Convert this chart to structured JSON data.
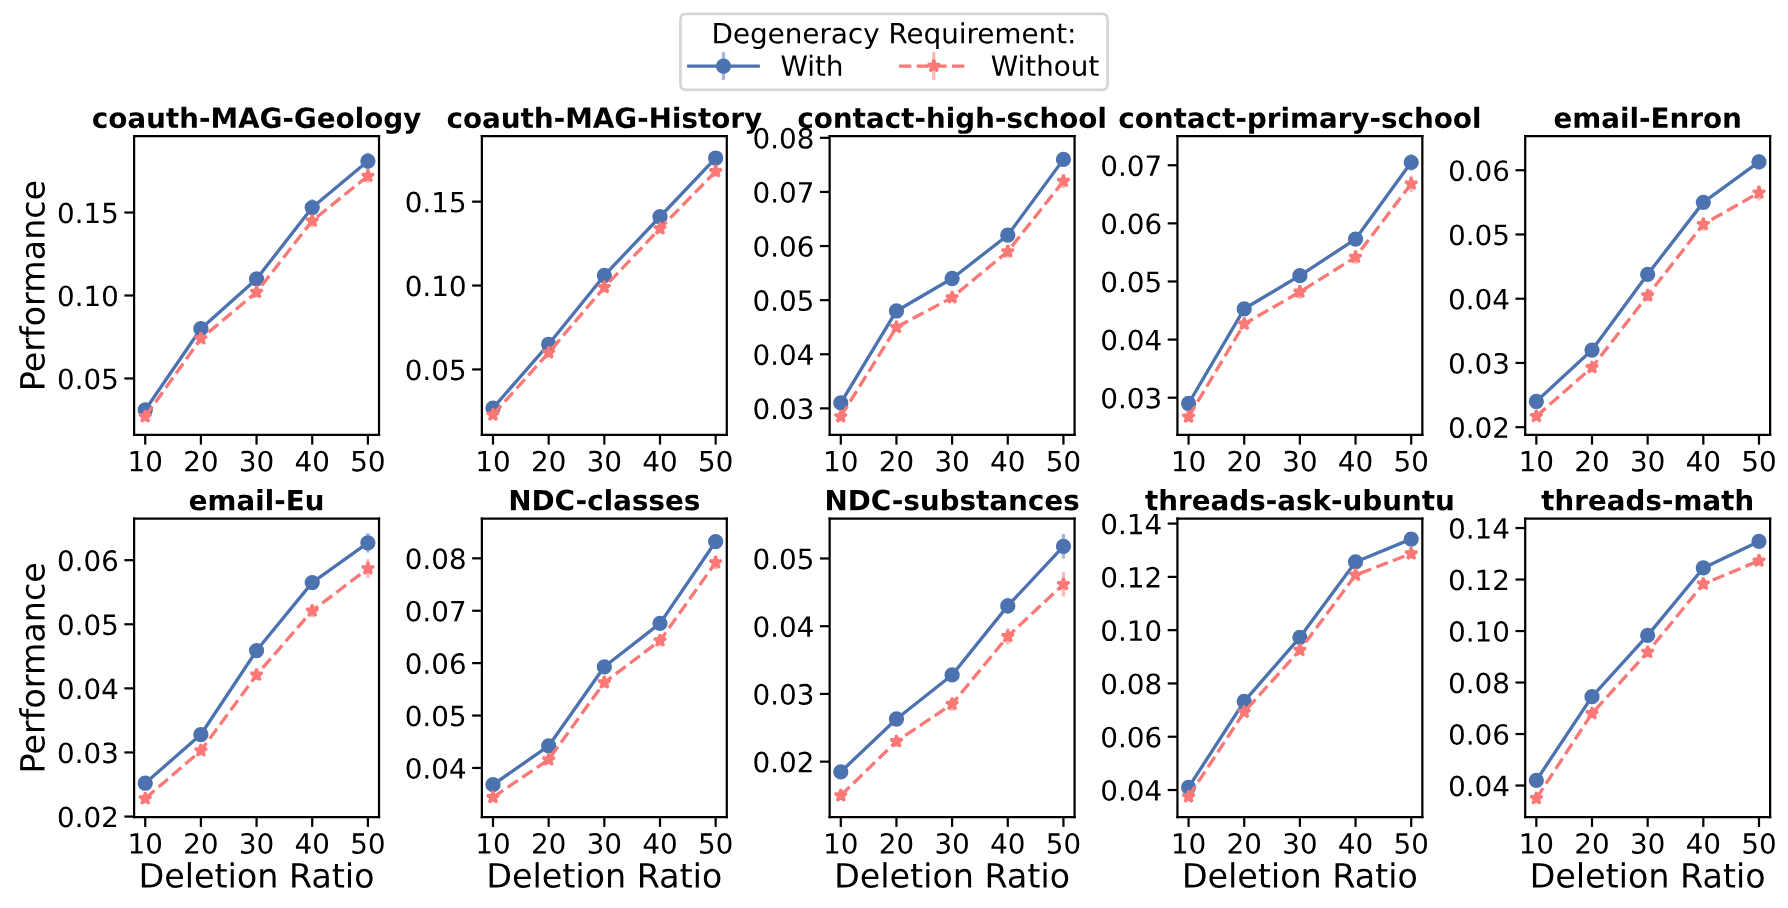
{
  "chart_data": [
    {
      "type": "line",
      "title": "coauth-MAG-Geology",
      "ylabel": "Performance",
      "legend_title": "Degeneracy Requirement:",
      "legend": "top",
      "x": [
        10,
        20,
        30,
        40,
        50
      ],
      "xlim": [
        8,
        52
      ],
      "xticks": [
        10,
        20,
        30,
        40,
        50
      ],
      "ylim": [
        0.016,
        0.196
      ],
      "yticks": [
        {
          "value": 0.05,
          "label": "0.05"
        },
        {
          "value": 0.1,
          "label": "0.10"
        },
        {
          "value": 0.15,
          "label": "0.15"
        }
      ],
      "series": [
        {
          "name": "With",
          "color": "#4c72b0",
          "marker": "circle",
          "line_style": "solid",
          "values": [
            0.031,
            0.08,
            0.11,
            0.153,
            0.181
          ],
          "errors": [
            0.002,
            0.002,
            0.003,
            0.005,
            0.005
          ]
        },
        {
          "name": "Without",
          "color": "#fa7876",
          "marker": "star",
          "line_style": "dashed",
          "values": [
            0.027,
            0.074,
            0.102,
            0.145,
            0.172
          ],
          "errors": [
            0.002,
            0.002,
            0.003,
            0.004,
            0.004
          ]
        }
      ]
    },
    {
      "type": "line",
      "title": "coauth-MAG-History",
      "x": [
        10,
        20,
        30,
        40,
        50
      ],
      "xlim": [
        8,
        52
      ],
      "xticks": [
        10,
        20,
        30,
        40,
        50
      ],
      "ylim": [
        0.011,
        0.189
      ],
      "yticks": [
        {
          "value": 0.05,
          "label": "0.05"
        },
        {
          "value": 0.1,
          "label": "0.10"
        },
        {
          "value": 0.15,
          "label": "0.15"
        }
      ],
      "series": [
        {
          "color": "#4c72b0",
          "marker": "circle",
          "line_style": "solid",
          "values": [
            0.027,
            0.065,
            0.106,
            0.141,
            0.176
          ],
          "errors": [
            0.002,
            0.002,
            0.003,
            0.003,
            0.004
          ]
        },
        {
          "color": "#fa7876",
          "marker": "star",
          "line_style": "dashed",
          "values": [
            0.023,
            0.06,
            0.099,
            0.134,
            0.168
          ],
          "errors": [
            0.002,
            0.002,
            0.003,
            0.003,
            0.003
          ]
        }
      ]
    },
    {
      "type": "line",
      "title": "contact-high-school",
      "x": [
        10,
        20,
        30,
        40,
        50
      ],
      "xlim": [
        8,
        52
      ],
      "xticks": [
        10,
        20,
        30,
        40,
        50
      ],
      "ylim": [
        0.0251,
        0.0803
      ],
      "yticks": [
        {
          "value": 0.03,
          "label": "0.03"
        },
        {
          "value": 0.04,
          "label": "0.04"
        },
        {
          "value": 0.05,
          "label": "0.05"
        },
        {
          "value": 0.06,
          "label": "0.06"
        },
        {
          "value": 0.07,
          "label": "0.07"
        },
        {
          "value": 0.08,
          "label": "0.08"
        }
      ],
      "series": [
        {
          "color": "#4c72b0",
          "marker": "circle",
          "line_style": "solid",
          "values": [
            0.031,
            0.048,
            0.054,
            0.062,
            0.076
          ],
          "errors": [
            0.0005,
            0.0006,
            0.0008,
            0.0012,
            0.0013
          ]
        },
        {
          "color": "#fa7876",
          "marker": "star",
          "line_style": "dashed",
          "values": [
            0.0285,
            0.045,
            0.0505,
            0.059,
            0.072
          ],
          "errors": [
            0.0005,
            0.0006,
            0.0008,
            0.0012,
            0.0013
          ]
        }
      ]
    },
    {
      "type": "line",
      "title": "contact-primary-school",
      "x": [
        10,
        20,
        30,
        40,
        50
      ],
      "xlim": [
        8,
        52
      ],
      "xticks": [
        10,
        20,
        30,
        40,
        50
      ],
      "ylim": [
        0.0236,
        0.075
      ],
      "yticks": [
        {
          "value": 0.03,
          "label": "0.03"
        },
        {
          "value": 0.04,
          "label": "0.04"
        },
        {
          "value": 0.05,
          "label": "0.05"
        },
        {
          "value": 0.06,
          "label": "0.06"
        },
        {
          "value": 0.07,
          "label": "0.07"
        }
      ],
      "series": [
        {
          "color": "#4c72b0",
          "marker": "circle",
          "line_style": "solid",
          "values": [
            0.029,
            0.0453,
            0.051,
            0.0573,
            0.0705
          ],
          "errors": [
            0.0005,
            0.0008,
            0.0012,
            0.0012,
            0.0014
          ]
        },
        {
          "color": "#fa7876",
          "marker": "star",
          "line_style": "dashed",
          "values": [
            0.0267,
            0.0427,
            0.0482,
            0.0542,
            0.0668
          ],
          "errors": [
            0.0005,
            0.0008,
            0.0012,
            0.0012,
            0.0014
          ]
        }
      ]
    },
    {
      "type": "line",
      "title": "email-Enron",
      "x": [
        10,
        20,
        30,
        40,
        50
      ],
      "xlim": [
        8,
        52
      ],
      "xticks": [
        10,
        20,
        30,
        40,
        50
      ],
      "ylim": [
        0.0188,
        0.0653
      ],
      "yticks": [
        {
          "value": 0.02,
          "label": "0.02"
        },
        {
          "value": 0.03,
          "label": "0.03"
        },
        {
          "value": 0.04,
          "label": "0.04"
        },
        {
          "value": 0.05,
          "label": "0.05"
        },
        {
          "value": 0.06,
          "label": "0.06"
        }
      ],
      "series": [
        {
          "color": "#4c72b0",
          "marker": "circle",
          "line_style": "solid",
          "values": [
            0.024,
            0.032,
            0.0438,
            0.055,
            0.0613
          ],
          "errors": [
            0.0005,
            0.0007,
            0.0009,
            0.001,
            0.0012
          ]
        },
        {
          "color": "#fa7876",
          "marker": "star",
          "line_style": "dashed",
          "values": [
            0.0217,
            0.0293,
            0.0405,
            0.0516,
            0.0565
          ],
          "errors": [
            0.0005,
            0.0007,
            0.0009,
            0.001,
            0.0012
          ]
        }
      ]
    },
    {
      "type": "line",
      "title": "email-Eu",
      "xlabel": "Deletion Ratio",
      "ylabel": "Performance",
      "x": [
        10,
        20,
        30,
        40,
        50
      ],
      "xlim": [
        8,
        52
      ],
      "xticks": [
        10,
        20,
        30,
        40,
        50
      ],
      "ylim": [
        0.0199,
        0.0665
      ],
      "yticks": [
        {
          "value": 0.02,
          "label": "0.02"
        },
        {
          "value": 0.03,
          "label": "0.03"
        },
        {
          "value": 0.04,
          "label": "0.04"
        },
        {
          "value": 0.05,
          "label": "0.05"
        },
        {
          "value": 0.06,
          "label": "0.06"
        }
      ],
      "series": [
        {
          "color": "#4c72b0",
          "marker": "circle",
          "line_style": "solid",
          "values": [
            0.0252,
            0.0328,
            0.0459,
            0.0565,
            0.0627
          ],
          "errors": [
            0.0004,
            0.0006,
            0.0008,
            0.001,
            0.0015
          ]
        },
        {
          "color": "#fa7876",
          "marker": "star",
          "line_style": "dashed",
          "values": [
            0.0228,
            0.0303,
            0.0421,
            0.0521,
            0.0587
          ],
          "errors": [
            0.0004,
            0.0006,
            0.0008,
            0.001,
            0.0015
          ]
        }
      ]
    },
    {
      "type": "line",
      "title": "NDC-classes",
      "xlabel": "Deletion Ratio",
      "x": [
        10,
        20,
        30,
        40,
        50
      ],
      "xlim": [
        8,
        52
      ],
      "xticks": [
        10,
        20,
        30,
        40,
        50
      ],
      "ylim": [
        0.0306,
        0.0876
      ],
      "yticks": [
        {
          "value": 0.04,
          "label": "0.04"
        },
        {
          "value": 0.05,
          "label": "0.05"
        },
        {
          "value": 0.06,
          "label": "0.06"
        },
        {
          "value": 0.07,
          "label": "0.07"
        },
        {
          "value": 0.08,
          "label": "0.08"
        }
      ],
      "series": [
        {
          "color": "#4c72b0",
          "marker": "circle",
          "line_style": "solid",
          "values": [
            0.0368,
            0.0442,
            0.0593,
            0.0676,
            0.0832
          ],
          "errors": [
            0.0004,
            0.0005,
            0.001,
            0.001,
            0.0013
          ]
        },
        {
          "color": "#fa7876",
          "marker": "star",
          "line_style": "dashed",
          "values": [
            0.0344,
            0.0416,
            0.0563,
            0.0643,
            0.0792
          ],
          "errors": [
            0.0004,
            0.0005,
            0.001,
            0.001,
            0.0013
          ]
        }
      ]
    },
    {
      "type": "line",
      "title": "NDC-substances",
      "xlabel": "Deletion Ratio",
      "x": [
        10,
        20,
        30,
        40,
        50
      ],
      "xlim": [
        8,
        52
      ],
      "xticks": [
        10,
        20,
        30,
        40,
        50
      ],
      "ylim": [
        0.0118,
        0.0559
      ],
      "yticks": [
        {
          "value": 0.02,
          "label": "0.02"
        },
        {
          "value": 0.03,
          "label": "0.03"
        },
        {
          "value": 0.04,
          "label": "0.04"
        },
        {
          "value": 0.05,
          "label": "0.05"
        }
      ],
      "series": [
        {
          "color": "#4c72b0",
          "marker": "circle",
          "line_style": "solid",
          "values": [
            0.0185,
            0.0263,
            0.0328,
            0.043,
            0.0518
          ],
          "errors": [
            0.0005,
            0.0008,
            0.001,
            0.0012,
            0.0018
          ]
        },
        {
          "color": "#fa7876",
          "marker": "star",
          "line_style": "dashed",
          "values": [
            0.015,
            0.023,
            0.0285,
            0.0385,
            0.0462
          ],
          "errors": [
            0.0005,
            0.0008,
            0.001,
            0.0012,
            0.0018
          ]
        }
      ]
    },
    {
      "type": "line",
      "title": "threads-ask-ubuntu",
      "xlabel": "Deletion Ratio",
      "x": [
        10,
        20,
        30,
        40,
        50
      ],
      "xlim": [
        8,
        52
      ],
      "xticks": [
        10,
        20,
        30,
        40,
        50
      ],
      "ylim": [
        0.0298,
        0.1419
      ],
      "yticks": [
        {
          "value": 0.04,
          "label": "0.04"
        },
        {
          "value": 0.06,
          "label": "0.06"
        },
        {
          "value": 0.08,
          "label": "0.08"
        },
        {
          "value": 0.1,
          "label": "0.10"
        },
        {
          "value": 0.12,
          "label": "0.12"
        },
        {
          "value": 0.14,
          "label": "0.14"
        }
      ],
      "series": [
        {
          "color": "#4c72b0",
          "marker": "circle",
          "line_style": "solid",
          "values": [
            0.041,
            0.0733,
            0.0973,
            0.1256,
            0.1342
          ],
          "errors": [
            0.001,
            0.001,
            0.0015,
            0.0015,
            0.002
          ]
        },
        {
          "color": "#fa7876",
          "marker": "star",
          "line_style": "dashed",
          "values": [
            0.0375,
            0.0693,
            0.0925,
            0.1207,
            0.1287
          ],
          "errors": [
            0.001,
            0.001,
            0.0015,
            0.0015,
            0.002
          ]
        }
      ]
    },
    {
      "type": "line",
      "title": "threads-math",
      "xlabel": "Deletion Ratio",
      "x": [
        10,
        20,
        30,
        40,
        50
      ],
      "xlim": [
        8,
        52
      ],
      "xticks": [
        10,
        20,
        30,
        40,
        50
      ],
      "ylim": [
        0.0277,
        0.1437
      ],
      "yticks": [
        {
          "value": 0.04,
          "label": "0.04"
        },
        {
          "value": 0.06,
          "label": "0.06"
        },
        {
          "value": 0.08,
          "label": "0.08"
        },
        {
          "value": 0.1,
          "label": "0.10"
        },
        {
          "value": 0.12,
          "label": "0.12"
        },
        {
          "value": 0.14,
          "label": "0.14"
        }
      ],
      "series": [
        {
          "color": "#4c72b0",
          "marker": "circle",
          "line_style": "solid",
          "values": [
            0.042,
            0.0745,
            0.0983,
            0.1245,
            0.1348
          ],
          "errors": [
            0.001,
            0.001,
            0.0015,
            0.002,
            0.002
          ]
        },
        {
          "color": "#fa7876",
          "marker": "star",
          "line_style": "dashed",
          "values": [
            0.035,
            0.068,
            0.0918,
            0.1183,
            0.1273
          ],
          "errors": [
            0.001,
            0.001,
            0.0015,
            0.002,
            0.002
          ]
        }
      ]
    }
  ]
}
